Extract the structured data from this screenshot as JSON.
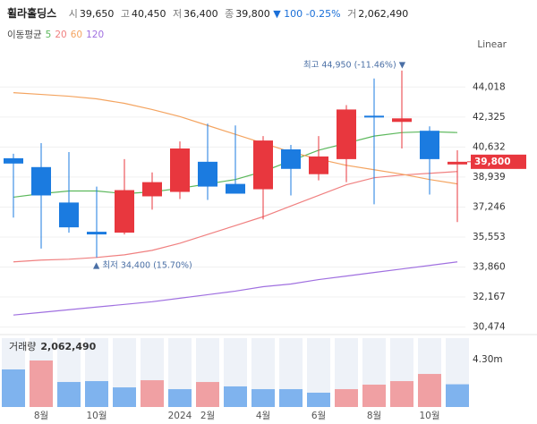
{
  "header": {
    "title": "휠라홀딩스",
    "items": [
      {
        "label": "시",
        "value": "39,650"
      },
      {
        "label": "고",
        "value": "40,450"
      },
      {
        "label": "저",
        "value": "36,400"
      },
      {
        "label": "종",
        "value": "39,800"
      }
    ],
    "change": [
      "▼ 100",
      "-0.25%"
    ],
    "change_color": "#1a6fd8",
    "volume": {
      "label": "거",
      "value": "2,062,490"
    }
  },
  "chart_data": {
    "type": "candlestick",
    "scale_label": "Linear",
    "ma_title": "이동평균",
    "categories": [
      null,
      "8월",
      null,
      "10월",
      null,
      null,
      "2024",
      "2월",
      null,
      "4월",
      null,
      "6월",
      null,
      "8월",
      null,
      "10월",
      null
    ],
    "open": [
      40000,
      39500,
      37500,
      35850,
      35800,
      37850,
      38100,
      39800,
      38550,
      38250,
      40500,
      39100,
      39950,
      42400,
      42050,
      41550,
      39650
    ],
    "high": [
      40250,
      40850,
      40350,
      38400,
      39950,
      39200,
      40950,
      41950,
      41850,
      41250,
      40750,
      41250,
      43000,
      44500,
      44950,
      41800,
      40450
    ],
    "low": [
      36650,
      34900,
      35800,
      34400,
      35700,
      37100,
      37700,
      37650,
      38000,
      36550,
      37900,
      38750,
      38650,
      37400,
      40550,
      37950,
      36400
    ],
    "close": [
      39700,
      37900,
      36100,
      35700,
      38200,
      38650,
      40550,
      38400,
      38000,
      41000,
      39400,
      40100,
      42750,
      42300,
      42250,
      39950,
      39800
    ],
    "up_color": "#e8373e",
    "down_color": "#1b7be0",
    "series": [
      {
        "name": "5",
        "color": "#5cb85c",
        "values": [
          37800,
          38000,
          38150,
          38150,
          38000,
          38100,
          38300,
          38550,
          38800,
          39250,
          39850,
          40450,
          40850,
          41250,
          41450,
          41500,
          41450
        ]
      },
      {
        "name": "20",
        "color": "#f08080",
        "values": [
          34150,
          34250,
          34300,
          34400,
          34550,
          34800,
          35200,
          35700,
          36200,
          36700,
          37300,
          37900,
          38500,
          38900,
          39050,
          39150,
          39250
        ]
      },
      {
        "name": "60",
        "color": "#f4a460",
        "values": [
          43700,
          43600,
          43500,
          43350,
          43100,
          42750,
          42350,
          41850,
          41350,
          40850,
          40350,
          39950,
          39600,
          39350,
          39100,
          38800,
          38550
        ]
      },
      {
        "name": "120",
        "color": "#a070e0",
        "values": [
          31150,
          31300,
          31450,
          31600,
          31750,
          31900,
          32100,
          32300,
          32500,
          32750,
          32900,
          33150,
          33350,
          33550,
          33750,
          33950,
          34150
        ]
      }
    ],
    "ylim": [
      30150,
      45800
    ],
    "yticks": [
      {
        "value": 44018,
        "label": "44,018"
      },
      {
        "value": 42325,
        "label": "42,325"
      },
      {
        "value": 40632,
        "label": "40,632"
      },
      {
        "value": 38939,
        "label": "38,939"
      },
      {
        "value": 37246,
        "label": "37,246"
      },
      {
        "value": 35553,
        "label": "35,553"
      },
      {
        "value": 33860,
        "label": "33,860"
      },
      {
        "value": 32167,
        "label": "32,167"
      },
      {
        "value": 30474,
        "label": "30,474"
      }
    ],
    "grid": true,
    "annotations": [
      {
        "text": "최고 44,950 (-11.46%) ▼"
      },
      {
        "text": "▲ 최저 34,400 (15.70%)"
      }
    ],
    "last_price": {
      "value": 39800,
      "label": "39,800",
      "color": "#e8373e"
    },
    "volume": {
      "title": "거래량",
      "label": "2,062,490",
      "values": [
        3410000,
        4220000,
        2270000,
        2350000,
        1780000,
        2430000,
        1620000,
        2270000,
        1870000,
        1620000,
        1620000,
        1300000,
        1620000,
        2030000,
        2350000,
        3000000,
        2062490
      ],
      "colors": [
        "#7fb3ee",
        "#f0a0a3",
        "#7fb3ee",
        "#7fb3ee",
        "#7fb3ee",
        "#f0a0a3",
        "#7fb3ee",
        "#f0a0a3",
        "#7fb3ee",
        "#7fb3ee",
        "#7fb3ee",
        "#7fb3ee",
        "#f0a0a3",
        "#f0a0a3",
        "#f0a0a3",
        "#f0a0a3",
        "#7fb3ee"
      ],
      "ylim": [
        0,
        6250000
      ],
      "yticks": [
        {
          "value": 4300000,
          "label": "4.30m"
        }
      ]
    }
  }
}
